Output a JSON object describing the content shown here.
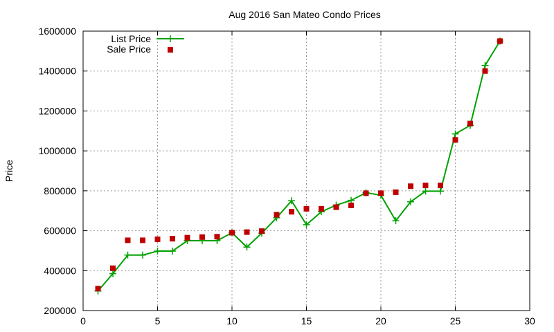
{
  "chart_data": {
    "type": "line",
    "title": "Aug 2016 San Mateo Condo Prices",
    "xlabel": "",
    "ylabel": "Price",
    "xlim": [
      0,
      30
    ],
    "ylim": [
      200000,
      1600000
    ],
    "x_ticks": [
      "0",
      "5",
      "10",
      "15",
      "20",
      "25",
      "30"
    ],
    "y_ticks": [
      "200000",
      "400000",
      "600000",
      "800000",
      "1000000",
      "1200000",
      "1400000",
      "1600000"
    ],
    "grid": true,
    "legend_position": "top-left",
    "x": [
      1,
      2,
      3,
      4,
      5,
      6,
      7,
      8,
      9,
      10,
      11,
      12,
      13,
      14,
      15,
      16,
      17,
      18,
      19,
      20,
      21,
      22,
      23,
      24,
      25,
      26,
      27,
      28
    ],
    "series": [
      {
        "name": "List Price",
        "style": "line-with-plus-markers",
        "color": "#00a000",
        "values": [
          298000,
          385000,
          478000,
          478000,
          498000,
          498000,
          550000,
          550000,
          550000,
          590000,
          518000,
          588000,
          665000,
          750000,
          630000,
          695000,
          728000,
          752000,
          790000,
          778000,
          650000,
          745000,
          798000,
          798000,
          1085000,
          1128000,
          1428000,
          1550000
        ]
      },
      {
        "name": "Sale Price",
        "style": "square-markers",
        "color": "#c00000",
        "values": [
          310000,
          412000,
          552000,
          552000,
          557000,
          560000,
          565000,
          568000,
          570000,
          590000,
          593000,
          598000,
          680000,
          695000,
          710000,
          710000,
          718000,
          727000,
          788000,
          788000,
          793000,
          823000,
          827000,
          827000,
          1055000,
          1137000,
          1400000,
          1550000
        ]
      }
    ]
  }
}
